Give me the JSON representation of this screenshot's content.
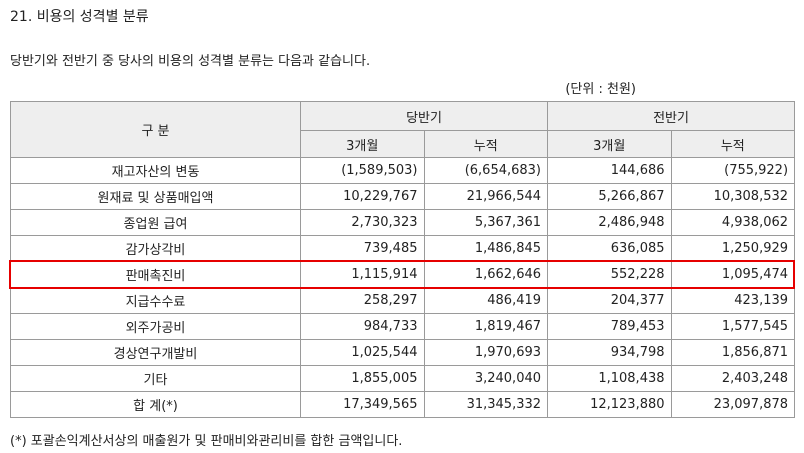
{
  "section_title": "21. 비용의 성격별 분류",
  "intro": "당반기와 전반기 중 당사의 비용의 성격별 분류는 다음과 같습니다.",
  "unit": "(단위 : 천원)",
  "table": {
    "header_category": "구      분",
    "group_current": "당반기",
    "group_prior": "전반기",
    "sub_3m": "3개월",
    "sub_cum": "누적",
    "rows": [
      {
        "label": "재고자산의 변동",
        "c3m": "(1,589,503)",
        "ccum": "(6,654,683)",
        "p3m": "144,686",
        "pcum": "(755,922)"
      },
      {
        "label": "원재료 및 상품매입액",
        "c3m": "10,229,767",
        "ccum": "21,966,544",
        "p3m": "5,266,867",
        "pcum": "10,308,532"
      },
      {
        "label": "종업원 급여",
        "c3m": "2,730,323",
        "ccum": "5,367,361",
        "p3m": "2,486,948",
        "pcum": "4,938,062"
      },
      {
        "label": "감가상각비",
        "c3m": "739,485",
        "ccum": "1,486,845",
        "p3m": "636,085",
        "pcum": "1,250,929"
      },
      {
        "label": "판매촉진비",
        "c3m": "1,115,914",
        "ccum": "1,662,646",
        "p3m": "552,228",
        "pcum": "1,095,474"
      },
      {
        "label": "지급수수료",
        "c3m": "258,297",
        "ccum": "486,419",
        "p3m": "204,377",
        "pcum": "423,139"
      },
      {
        "label": "외주가공비",
        "c3m": "984,733",
        "ccum": "1,819,467",
        "p3m": "789,453",
        "pcum": "1,577,545"
      },
      {
        "label": "경상연구개발비",
        "c3m": "1,025,544",
        "ccum": "1,970,693",
        "p3m": "934,798",
        "pcum": "1,856,871"
      },
      {
        "label": "기타",
        "c3m": "1,855,005",
        "ccum": "3,240,040",
        "p3m": "1,108,438",
        "pcum": "2,403,248"
      },
      {
        "label": "합 계(*)",
        "c3m": "17,349,565",
        "ccum": "31,345,332",
        "p3m": "12,123,880",
        "pcum": "23,097,878"
      }
    ]
  },
  "footnote": "(*) 포괄손익계산서상의 매출원가 및 판매비와관리비를 합한 금액입니다.",
  "highlight_color": "#e60000"
}
